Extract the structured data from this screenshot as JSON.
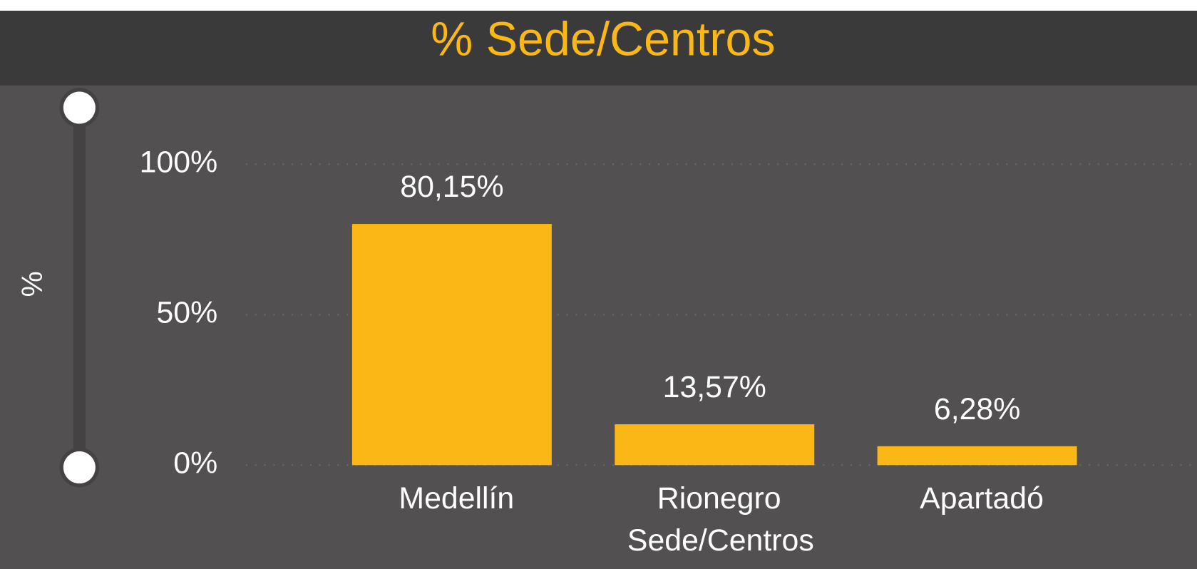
{
  "chart_data": {
    "type": "bar",
    "title": "% Sede/Centros",
    "y_label": "%",
    "x_label": "Sede/Centros",
    "categories": [
      "Medellín",
      "Rionegro",
      "Apartadó"
    ],
    "values": [
      80.15,
      13.57,
      6.28
    ],
    "value_labels": [
      "80,15%",
      "13,57%",
      "6,28%"
    ],
    "color": "#fbb716",
    "ylim": [
      0,
      100
    ],
    "yticks": [
      {
        "value": 0,
        "label": "0%"
      },
      {
        "value": 50,
        "label": "50%"
      },
      {
        "value": 100,
        "label": "100%"
      }
    ],
    "grid": true
  }
}
